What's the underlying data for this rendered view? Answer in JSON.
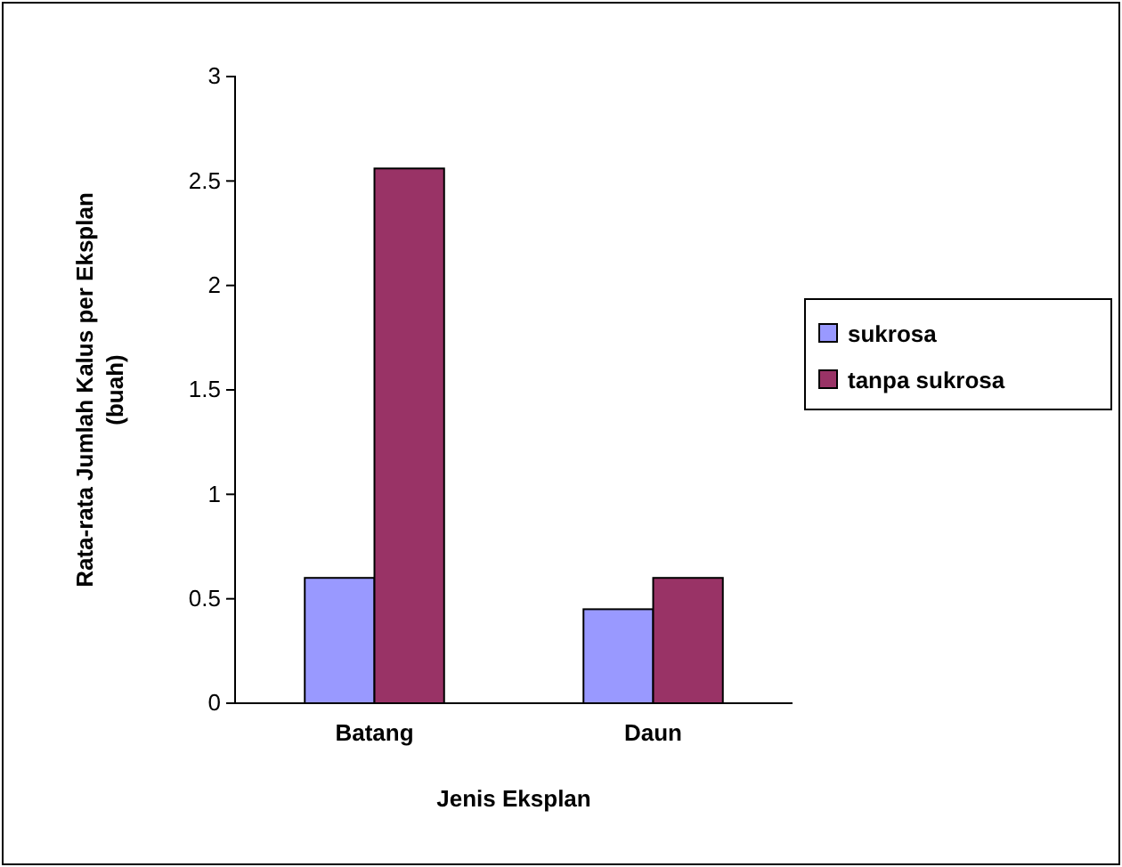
{
  "chart_data": {
    "type": "bar",
    "xlabel": "Jenis Eksplan",
    "ylabel": "Rata-rata Jumlah Kalus per Eksplan\n(buah)",
    "categories": [
      "Batang",
      "Daun"
    ],
    "series": [
      {
        "name": "sukrosa",
        "color": "#9999ff",
        "values": [
          0.6,
          0.45
        ]
      },
      {
        "name": "tanpa sukrosa",
        "color": "#993366",
        "values": [
          2.56,
          0.6
        ]
      }
    ],
    "ylim": [
      0,
      3
    ],
    "yticks": [
      0,
      0.5,
      1,
      1.5,
      2,
      2.5,
      3
    ],
    "grid": false,
    "legend": "right"
  }
}
